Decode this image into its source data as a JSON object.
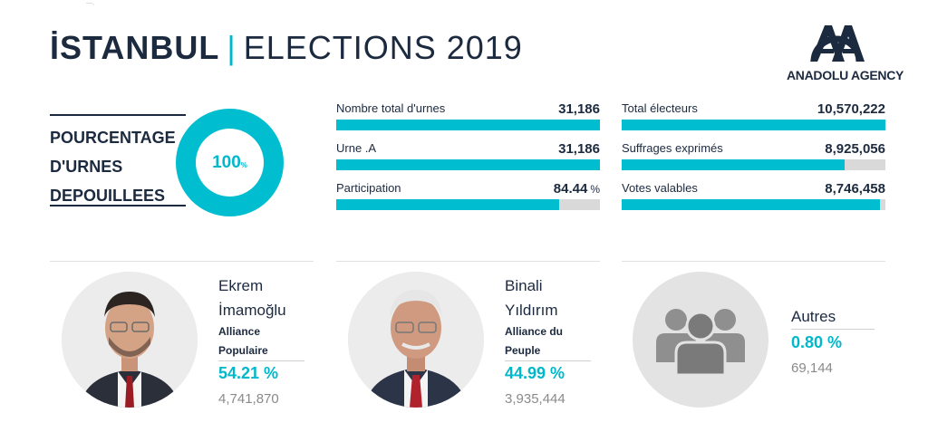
{
  "header": {
    "city": "İSTANBUL",
    "separator": "|",
    "subtitle": "ELECTIONS 2019"
  },
  "logo": {
    "text": "ANADOLU AGENCY",
    "icon": "anadolu-aa-logo",
    "color": "#1c2a3f"
  },
  "counted": {
    "label_lines": [
      "POURCENTAGE",
      "D'URNES",
      "DEPOUILLEES"
    ],
    "value": "100",
    "unit": "%",
    "percent": 100
  },
  "stats_left": [
    {
      "label": "Nombre total d'urnes",
      "value": "31,186",
      "unit": "",
      "fill_percent": 100
    },
    {
      "label": "Urne .A",
      "value": "31,186",
      "unit": "",
      "fill_percent": 100
    },
    {
      "label": "Participation",
      "value": "84.44",
      "unit": "%",
      "fill_percent": 84.44
    }
  ],
  "stats_right": [
    {
      "label": "Total électeurs",
      "value": "10,570,222",
      "unit": "",
      "fill_percent": 100
    },
    {
      "label": "Suffrages exprimés",
      "value": "8,925,056",
      "unit": "",
      "fill_percent": 84.44
    },
    {
      "label": "Votes valables",
      "value": "8,746,458",
      "unit": "",
      "fill_percent": 98
    }
  ],
  "candidates": [
    {
      "name_lines": [
        "Ekrem",
        "İmamoğlu"
      ],
      "party_lines": [
        "Alliance",
        "Populaire"
      ],
      "percent": "54.21 %",
      "votes": "4,741,870"
    },
    {
      "name_lines": [
        "Binali",
        "Yıldırım"
      ],
      "party_lines": [
        "Alliance du",
        "Peuple"
      ],
      "percent": "44.99 %",
      "votes": "3,935,444"
    }
  ],
  "others": {
    "name": "Autres",
    "percent": "0.80 %",
    "votes": "69,144",
    "icon": "group-icon"
  },
  "colors": {
    "accent": "#00bdd0",
    "dark": "#1c2a3f",
    "muted": "#8a8a8a",
    "track": "#d9d9d9"
  }
}
